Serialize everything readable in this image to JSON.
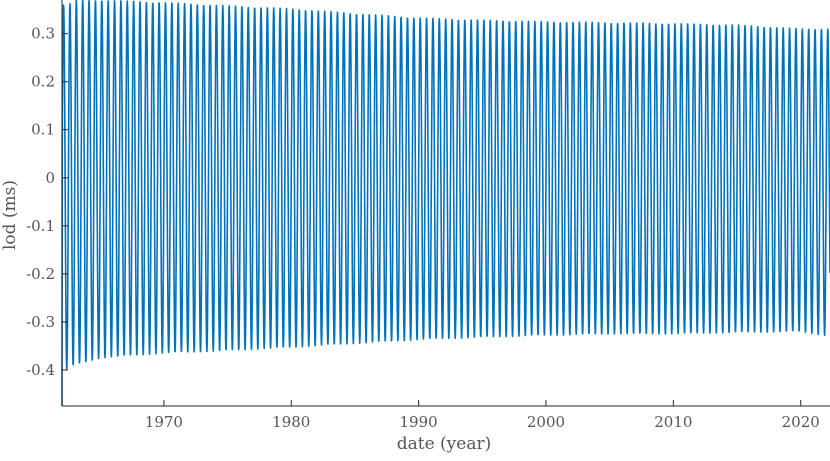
{
  "chart_data": {
    "type": "line",
    "xlabel": "date (year)",
    "ylabel": "lod (ms)",
    "xlim": [
      1962.0,
      2022.3
    ],
    "ylim": [
      -0.475,
      0.37
    ],
    "x_ticks": [
      1970,
      1980,
      1990,
      2000,
      2010,
      2020
    ],
    "x_tick_labels": [
      "1970",
      "1980",
      "1990",
      "2000",
      "2010",
      "2020"
    ],
    "y_ticks": [
      0.3,
      0.2,
      0.1,
      0,
      -0.1,
      -0.2,
      -0.3,
      -0.4
    ],
    "y_tick_labels": [
      "0.3",
      "0.2",
      "0.1",
      "0",
      "-0.1",
      "-0.2",
      "-0.3",
      "-0.4"
    ],
    "grid": false,
    "series": [
      {
        "color": "#0072BD",
        "x_start": 1962.0,
        "x_end": 2022.3,
        "period_years": 0.5,
        "start_value": -0.475,
        "upper_envelope": {
          "x": [
            1962.5,
            1963,
            1965,
            1970,
            1975,
            1980,
            1985,
            1990,
            1995,
            2000,
            2005,
            2010,
            2015,
            2020,
            2022.3
          ],
          "y": [
            0.36,
            0.37,
            0.37,
            0.365,
            0.358,
            0.352,
            0.342,
            0.333,
            0.328,
            0.325,
            0.323,
            0.321,
            0.318,
            0.31,
            0.31
          ]
        },
        "lower_envelope": {
          "x": [
            1962.3,
            1963,
            1965,
            1970,
            1975,
            1980,
            1985,
            1990,
            1995,
            2000,
            2005,
            2010,
            2015,
            2020,
            2022.3
          ],
          "y": [
            -0.4,
            -0.39,
            -0.375,
            -0.365,
            -0.36,
            -0.353,
            -0.345,
            -0.337,
            -0.332,
            -0.328,
            -0.325,
            -0.325,
            -0.322,
            -0.32,
            -0.33
          ]
        }
      }
    ]
  }
}
